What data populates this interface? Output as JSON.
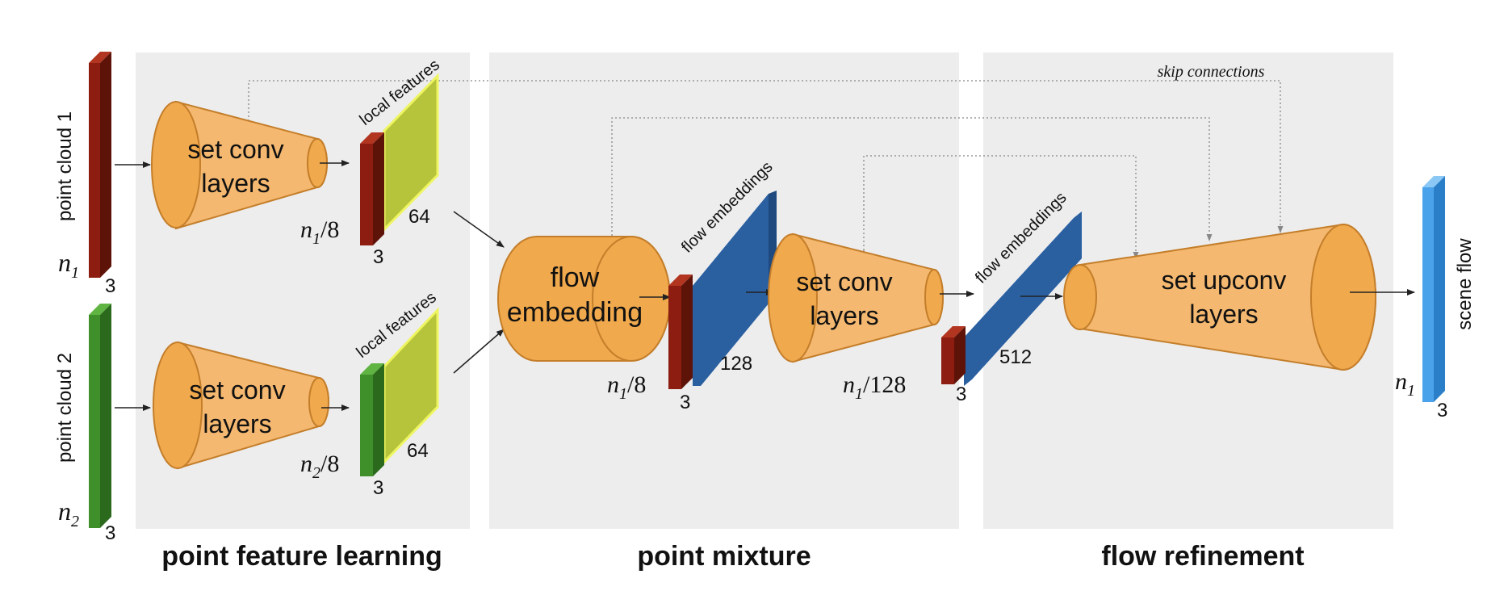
{
  "sections": {
    "point_feature_learning": "point feature learning",
    "point_mixture": "point mixture",
    "flow_refinement": "flow refinement"
  },
  "inputs": {
    "cloud1": {
      "label": "point cloud 1",
      "size_base": "n",
      "size_sub": "1",
      "dim": "3"
    },
    "cloud2": {
      "label": "point cloud 2",
      "size_base": "n",
      "size_sub": "2",
      "dim": "3"
    }
  },
  "blocks": {
    "setconv1": {
      "line1": "set conv",
      "line2": "layers"
    },
    "setconv2": {
      "line1": "set conv",
      "line2": "layers"
    },
    "flow_embedding": {
      "line1": "flow",
      "line2": "embedding"
    },
    "setconv3": {
      "line1": "set conv",
      "line2": "layers"
    },
    "setupconv": {
      "line1": "set upconv",
      "line2": "layers"
    }
  },
  "features": {
    "local1": {
      "label": "local features",
      "channels": "64",
      "size_base": "n",
      "size_sub": "1",
      "size_rest": "/8",
      "dim": "3"
    },
    "local2": {
      "label": "local features",
      "channels": "64",
      "size_base": "n",
      "size_sub": "2",
      "size_rest": "/8",
      "dim": "3"
    },
    "flowemb1": {
      "label": "flow embeddings",
      "channels": "128",
      "size_base": "n",
      "size_sub": "1",
      "size_rest": "/8",
      "dim": "3"
    },
    "flowemb2": {
      "label": "flow embeddings",
      "channels": "512",
      "size_base": "n",
      "size_sub": "1",
      "size_rest": "/128",
      "dim": "3"
    }
  },
  "output": {
    "label": "scene flow",
    "size_base": "n",
    "size_sub": "1",
    "dim": "3"
  },
  "skip_label": "skip connections",
  "colors": {
    "panel": "#ededed",
    "cone": "#f4b870",
    "cone_end": "#f0a94d",
    "cone_stroke": "#c47e2a",
    "red_bar": "#8c1d10",
    "green_bar": "#3f8f2a",
    "feature_green": "#b5c43a",
    "feature_border": "#eef560",
    "blue_block": "#2a5fa0",
    "blue_light": "#4b86cf",
    "scene_blue": "#4aa3ea"
  }
}
